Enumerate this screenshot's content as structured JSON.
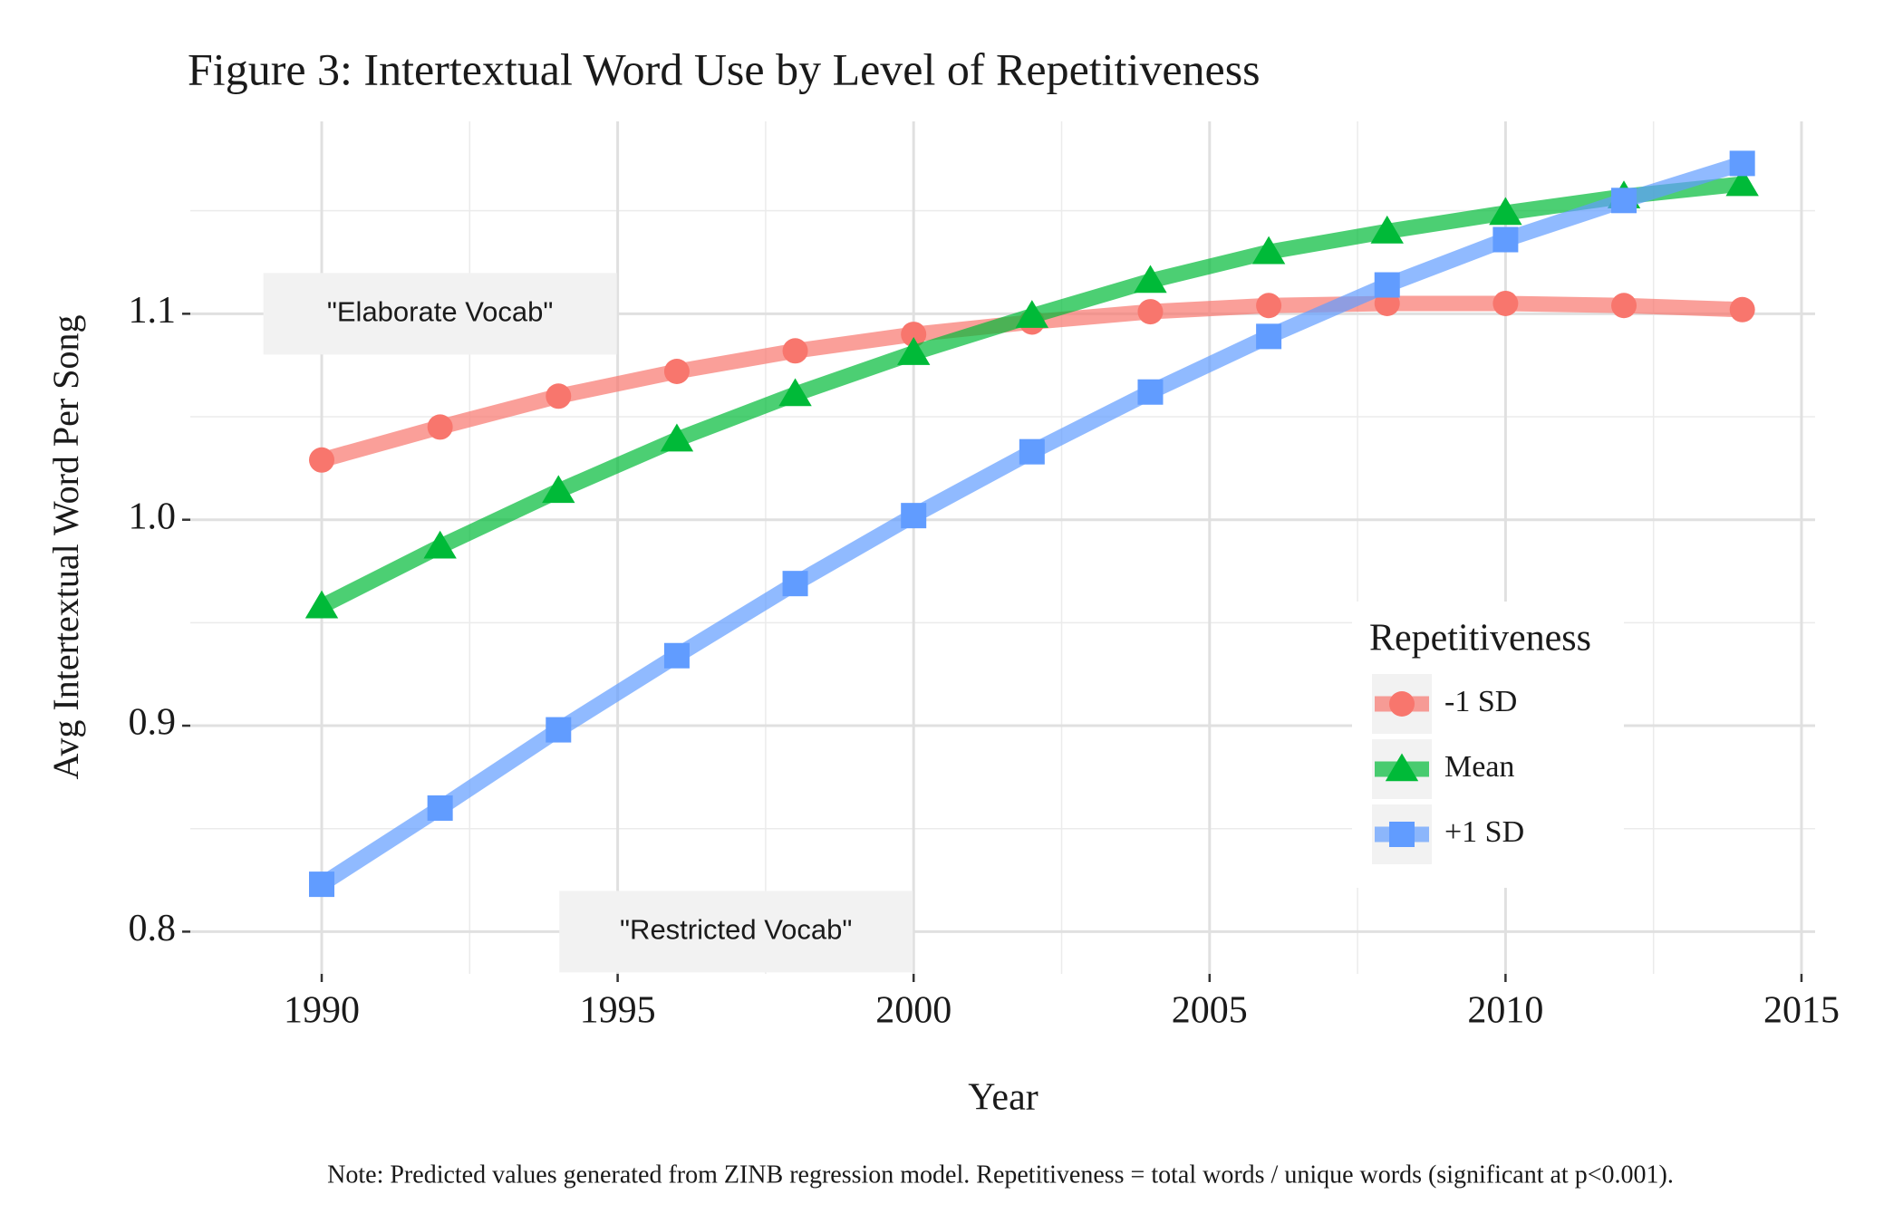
{
  "chart_data": {
    "type": "line",
    "title": "Figure 3: Intertextual Word Use by Level of Repetitiveness",
    "x_label": "Year",
    "y_label": "Avg Intertextual Word Per Song",
    "note": "Note: Predicted values generated from ZINB regression model. Repetitiveness = total words / unique words (significant at p<0.001).",
    "x": [
      1990,
      1992,
      1994,
      1996,
      1998,
      2000,
      2002,
      2004,
      2006,
      2008,
      2010,
      2012,
      2014
    ],
    "series": [
      {
        "name": "-1 SD",
        "color": "#F8766D",
        "marker": "circle",
        "values": [
          1.029,
          1.045,
          1.06,
          1.072,
          1.082,
          1.09,
          1.096,
          1.101,
          1.104,
          1.105,
          1.105,
          1.104,
          1.102
        ]
      },
      {
        "name": "Mean",
        "color": "#00BA38",
        "marker": "triangle",
        "values": [
          0.958,
          0.987,
          1.014,
          1.039,
          1.061,
          1.081,
          1.099,
          1.116,
          1.13,
          1.14,
          1.149,
          1.157,
          1.163
        ]
      },
      {
        "name": "+1 SD",
        "color": "#619CFF",
        "marker": "square",
        "values": [
          0.823,
          0.86,
          0.898,
          0.934,
          0.969,
          1.002,
          1.033,
          1.062,
          1.089,
          1.114,
          1.136,
          1.155,
          1.173
        ]
      }
    ],
    "xlim": [
      1987.78,
      2015.23
    ],
    "ylim": [
      0.7795,
      1.1934
    ],
    "xticks": [
      1990,
      1995,
      2000,
      2005,
      2010,
      2015
    ],
    "yticks": [
      0.8,
      0.9,
      {
        "value": 1,
        "label": "1.0"
      },
      1.1
    ],
    "xminorticks": [
      1992.5,
      1997.5,
      2002.5,
      2007.5,
      2012.5
    ],
    "yminorticks": [
      0.85,
      0.95,
      1.05,
      1.15
    ],
    "grid": true,
    "legend_title": "Repetitiveness",
    "legend_position": "right",
    "annotations": [
      {
        "text": "\"Elaborate Vocab\"",
        "x": 1992,
        "y": 1.1
      },
      {
        "text": "\"Restricted Vocab\"",
        "x": 1997,
        "y": 0.8
      }
    ]
  }
}
